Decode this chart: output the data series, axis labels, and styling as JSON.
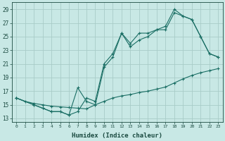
{
  "xlabel": "Humidex (Indice chaleur)",
  "bg_color": "#c8e8e5",
  "grid_color": "#a8ccc8",
  "line_color": "#1a6e64",
  "xlim": [
    -0.5,
    23.5
  ],
  "ylim": [
    12.5,
    30.0
  ],
  "xticks": [
    0,
    1,
    2,
    3,
    4,
    5,
    6,
    7,
    8,
    9,
    10,
    11,
    12,
    13,
    14,
    15,
    16,
    17,
    18,
    19,
    20,
    21,
    22,
    23
  ],
  "yticks": [
    13,
    15,
    17,
    19,
    21,
    23,
    25,
    27,
    29
  ],
  "line1_x": [
    0,
    1,
    2,
    3,
    4,
    5,
    6,
    7,
    8,
    9,
    10,
    11,
    12,
    13,
    14,
    15,
    16,
    17,
    18,
    19,
    20,
    21,
    22,
    23
  ],
  "line1_y": [
    16.0,
    15.5,
    15.2,
    15.0,
    14.8,
    14.7,
    14.6,
    14.5,
    14.4,
    15.0,
    15.5,
    16.0,
    16.3,
    16.5,
    16.8,
    17.0,
    17.3,
    17.6,
    18.2,
    18.8,
    19.3,
    19.7,
    20.0,
    20.3
  ],
  "line2_x": [
    0,
    2,
    3,
    4,
    5,
    6,
    7,
    8,
    9,
    10,
    11,
    12,
    13,
    14,
    15,
    16,
    17,
    18,
    19,
    20,
    21,
    22,
    23
  ],
  "line2_y": [
    16.0,
    15.0,
    14.5,
    14.0,
    14.0,
    13.5,
    14.0,
    16.0,
    15.5,
    21.0,
    22.5,
    25.5,
    24.0,
    25.5,
    25.5,
    26.0,
    26.5,
    29.0,
    28.0,
    27.5,
    25.0,
    22.5,
    22.0
  ],
  "line3_x": [
    0,
    2,
    3,
    4,
    5,
    6,
    7,
    8,
    9,
    10,
    11,
    12,
    13,
    14,
    15,
    16,
    17,
    18,
    19,
    20,
    21,
    22,
    23
  ],
  "line3_y": [
    16.0,
    15.0,
    14.5,
    14.0,
    14.0,
    13.5,
    17.5,
    15.5,
    15.0,
    20.5,
    22.0,
    25.5,
    23.5,
    24.5,
    25.0,
    26.0,
    26.0,
    28.5,
    28.0,
    27.5,
    25.0,
    22.5,
    22.0
  ]
}
